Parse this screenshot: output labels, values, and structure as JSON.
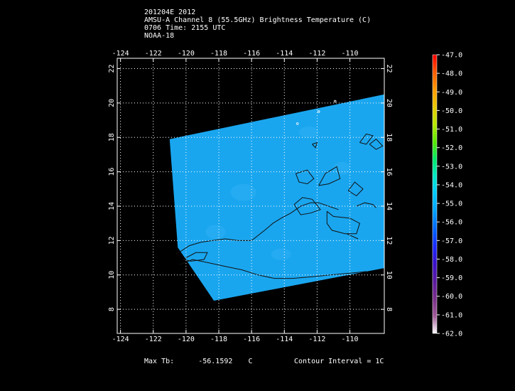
{
  "title": {
    "line1": "201204E 2012",
    "line2": "AMSU-A Channel 8 (55.5GHz) Brightness Temperature (C)",
    "line3": "0706 Time: 2155 UTC",
    "line4": "NOAA-18"
  },
  "map": {
    "lon_ticks": [
      "-124",
      "-122",
      "-120",
      "-118",
      "-116",
      "-114",
      "-112",
      "-110"
    ],
    "lat_ticks": [
      "8",
      "10",
      "12",
      "14",
      "16",
      "18",
      "20",
      "22"
    ],
    "lon_range": [
      -124.2,
      -107.9
    ],
    "lat_range": [
      6.6,
      22.6
    ],
    "grid": true,
    "field_color": "#1aa6ef",
    "contour_color": "#111111",
    "swath_corners_lonlat": [
      [
        -121.0,
        17.9
      ],
      [
        -107.9,
        20.5
      ],
      [
        -107.9,
        10.4
      ],
      [
        -118.3,
        8.5
      ],
      [
        -120.5,
        11.6
      ]
    ]
  },
  "colorbar": {
    "labels": [
      "-47.0",
      "-48.0",
      "-49.0",
      "-50.0",
      "-51.0",
      "-52.0",
      "-53.0",
      "-54.0",
      "-55.0",
      "-56.0",
      "-57.0",
      "-58.0",
      "-59.0",
      "-60.0",
      "-61.0",
      "-62.0"
    ],
    "colors_top_to_bottom": [
      "#ff0000",
      "#ff5a00",
      "#ff9a00",
      "#e8c800",
      "#b8e800",
      "#5ae800",
      "#00e86a",
      "#00e8c8",
      "#00c8ff",
      "#00a0ff",
      "#0066ff",
      "#1a2aff",
      "#3a10c8",
      "#5a1aa0",
      "#7a2e8a",
      "#a05a96",
      "#ffffff"
    ]
  },
  "footer": {
    "max_tb_label": "Max Tb:",
    "max_tb_value": "-56.1592",
    "max_tb_unit": "C",
    "contour_interval": "Contour Interval = 1C"
  }
}
